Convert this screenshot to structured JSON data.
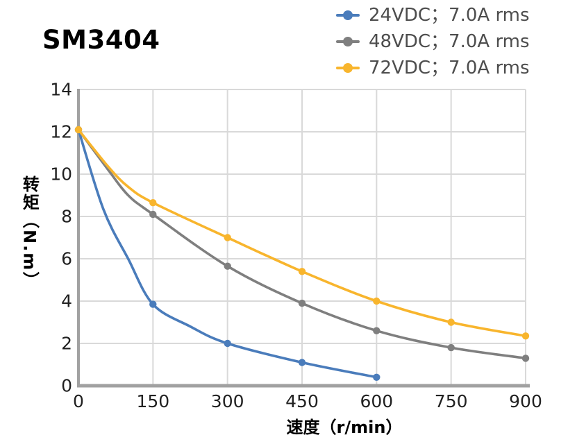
{
  "title": "SM3404",
  "colors": {
    "blue": "#4A7CBB",
    "gray": "#7F7F7F",
    "yellow": "#F8B52D",
    "grid": "#D9D9D9",
    "axis": "#A1A1A1",
    "tick_text": "#212121",
    "legend_text": "#4D4D4D"
  },
  "chart_data": {
    "type": "line",
    "title": "SM3404",
    "xlabel": "速度（r/min）",
    "ylabel": "转矩（N.m）",
    "xlim": [
      0,
      900
    ],
    "ylim": [
      0,
      14
    ],
    "x_ticks": [
      0,
      150,
      300,
      450,
      600,
      750,
      900
    ],
    "y_ticks": [
      0,
      2,
      4,
      6,
      8,
      10,
      12,
      14
    ],
    "grid": true,
    "legend_position": "top-right",
    "marker": "circle",
    "series": [
      {
        "id": "24vdc",
        "name": "24VDC；7.0A rms",
        "color": "#4A7CBB",
        "x": [
          0,
          150,
          300,
          450,
          600
        ],
        "values": [
          12.1,
          3.85,
          2.0,
          1.1,
          0.4
        ],
        "curve_shape_points": [
          [
            50,
            8.35
          ],
          [
            100,
            6.0
          ],
          [
            225,
            2.8
          ]
        ]
      },
      {
        "id": "48vdc",
        "name": "48VDC；7.0A rms",
        "color": "#7F7F7F",
        "x": [
          0,
          150,
          300,
          450,
          600,
          750,
          900
        ],
        "values": [
          12.1,
          8.1,
          5.65,
          3.9,
          2.6,
          1.8,
          1.3
        ],
        "curve_shape_points": [
          [
            60,
            10.2
          ],
          [
            100,
            9.0
          ]
        ]
      },
      {
        "id": "72vdc",
        "name": "72VDC；7.0A rms",
        "color": "#F8B52D",
        "x": [
          0,
          150,
          300,
          450,
          600,
          750,
          900
        ],
        "values": [
          12.1,
          8.65,
          7.0,
          5.4,
          4.0,
          3.0,
          2.35
        ],
        "curve_shape_points": [
          [
            60,
            10.35
          ],
          [
            100,
            9.4
          ]
        ]
      }
    ]
  }
}
